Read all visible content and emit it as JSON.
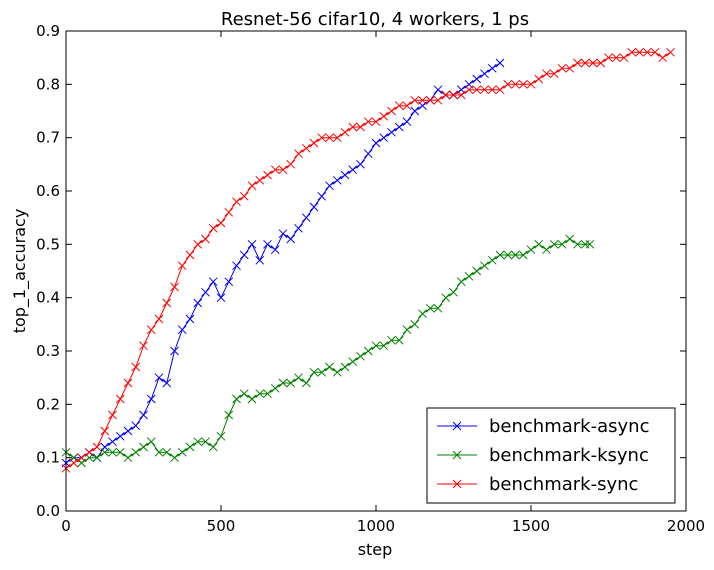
{
  "chart_data": {
    "type": "line",
    "title": "Resnet-56 cifar10, 4 workers, 1 ps",
    "xlabel": "step",
    "ylabel": "top_1_accuracy",
    "xlim": [
      0,
      2000
    ],
    "ylim": [
      0,
      0.9
    ],
    "xticks": [
      "0",
      "500",
      "1000",
      "1500",
      "2000"
    ],
    "yticks": [
      "0.0",
      "0.1",
      "0.2",
      "0.3",
      "0.4",
      "0.5",
      "0.6",
      "0.7",
      "0.8",
      "0.9"
    ],
    "grid": false,
    "legend_position": "lower-right",
    "series": [
      {
        "name": "benchmark-async",
        "color": "#0000ff",
        "marker": "x",
        "x": [
          0,
          25,
          50,
          75,
          100,
          125,
          150,
          175,
          200,
          225,
          250,
          275,
          300,
          325,
          350,
          375,
          400,
          425,
          450,
          475,
          500,
          525,
          550,
          575,
          600,
          625,
          650,
          675,
          700,
          725,
          750,
          775,
          800,
          825,
          850,
          875,
          900,
          925,
          950,
          975,
          1000,
          1025,
          1050,
          1075,
          1100,
          1125,
          1150,
          1175,
          1200,
          1225,
          1250,
          1275,
          1300,
          1325,
          1350,
          1375,
          1400
        ],
        "y": [
          0.09,
          0.1,
          0.1,
          0.11,
          0.1,
          0.12,
          0.13,
          0.14,
          0.15,
          0.16,
          0.18,
          0.21,
          0.25,
          0.24,
          0.3,
          0.34,
          0.36,
          0.39,
          0.41,
          0.43,
          0.4,
          0.43,
          0.46,
          0.48,
          0.5,
          0.47,
          0.5,
          0.49,
          0.52,
          0.51,
          0.53,
          0.55,
          0.57,
          0.59,
          0.61,
          0.62,
          0.63,
          0.64,
          0.65,
          0.67,
          0.69,
          0.7,
          0.71,
          0.72,
          0.73,
          0.75,
          0.76,
          0.77,
          0.79,
          0.78,
          0.78,
          0.79,
          0.8,
          0.81,
          0.82,
          0.83,
          0.84
        ]
      },
      {
        "name": "benchmark-ksync",
        "color": "#008000",
        "marker": "x",
        "x": [
          0,
          25,
          50,
          75,
          100,
          125,
          150,
          175,
          200,
          225,
          250,
          275,
          300,
          325,
          350,
          375,
          400,
          425,
          450,
          475,
          500,
          525,
          550,
          575,
          600,
          625,
          650,
          675,
          700,
          725,
          750,
          775,
          800,
          825,
          850,
          875,
          900,
          925,
          950,
          975,
          1000,
          1025,
          1050,
          1075,
          1100,
          1125,
          1150,
          1175,
          1200,
          1225,
          1250,
          1275,
          1300,
          1325,
          1350,
          1375,
          1400,
          1425,
          1450,
          1475,
          1500,
          1525,
          1550,
          1575,
          1600,
          1625,
          1650,
          1675,
          1690
        ],
        "y": [
          0.11,
          0.1,
          0.09,
          0.1,
          0.1,
          0.11,
          0.11,
          0.11,
          0.1,
          0.11,
          0.12,
          0.13,
          0.11,
          0.11,
          0.1,
          0.11,
          0.12,
          0.13,
          0.13,
          0.12,
          0.14,
          0.18,
          0.21,
          0.22,
          0.21,
          0.22,
          0.22,
          0.23,
          0.24,
          0.24,
          0.25,
          0.24,
          0.26,
          0.26,
          0.27,
          0.26,
          0.27,
          0.28,
          0.29,
          0.3,
          0.31,
          0.31,
          0.32,
          0.32,
          0.34,
          0.35,
          0.37,
          0.38,
          0.38,
          0.4,
          0.41,
          0.43,
          0.44,
          0.45,
          0.46,
          0.47,
          0.48,
          0.48,
          0.48,
          0.48,
          0.49,
          0.5,
          0.49,
          0.5,
          0.5,
          0.51,
          0.5,
          0.5,
          0.5
        ]
      },
      {
        "name": "benchmark-sync",
        "color": "#ff0000",
        "marker": "x",
        "x": [
          0,
          25,
          50,
          75,
          100,
          125,
          150,
          175,
          200,
          225,
          250,
          275,
          300,
          325,
          350,
          375,
          400,
          425,
          450,
          475,
          500,
          525,
          550,
          575,
          600,
          625,
          650,
          675,
          700,
          725,
          750,
          775,
          800,
          825,
          850,
          875,
          900,
          925,
          950,
          975,
          1000,
          1025,
          1050,
          1075,
          1100,
          1125,
          1150,
          1175,
          1200,
          1225,
          1250,
          1275,
          1300,
          1325,
          1350,
          1375,
          1400,
          1425,
          1450,
          1475,
          1500,
          1525,
          1550,
          1575,
          1600,
          1625,
          1650,
          1675,
          1700,
          1725,
          1750,
          1775,
          1800,
          1825,
          1850,
          1875,
          1900,
          1925,
          1950
        ],
        "y": [
          0.08,
          0.09,
          0.1,
          0.11,
          0.12,
          0.15,
          0.18,
          0.21,
          0.24,
          0.27,
          0.31,
          0.34,
          0.36,
          0.39,
          0.42,
          0.46,
          0.48,
          0.5,
          0.51,
          0.53,
          0.54,
          0.56,
          0.58,
          0.59,
          0.61,
          0.62,
          0.63,
          0.64,
          0.64,
          0.65,
          0.67,
          0.68,
          0.69,
          0.7,
          0.7,
          0.7,
          0.71,
          0.72,
          0.72,
          0.73,
          0.73,
          0.74,
          0.75,
          0.76,
          0.76,
          0.77,
          0.77,
          0.77,
          0.77,
          0.78,
          0.78,
          0.78,
          0.79,
          0.79,
          0.79,
          0.79,
          0.79,
          0.8,
          0.8,
          0.8,
          0.8,
          0.81,
          0.82,
          0.82,
          0.83,
          0.83,
          0.84,
          0.84,
          0.84,
          0.84,
          0.85,
          0.85,
          0.85,
          0.86,
          0.86,
          0.86,
          0.86,
          0.85,
          0.86
        ]
      }
    ]
  }
}
